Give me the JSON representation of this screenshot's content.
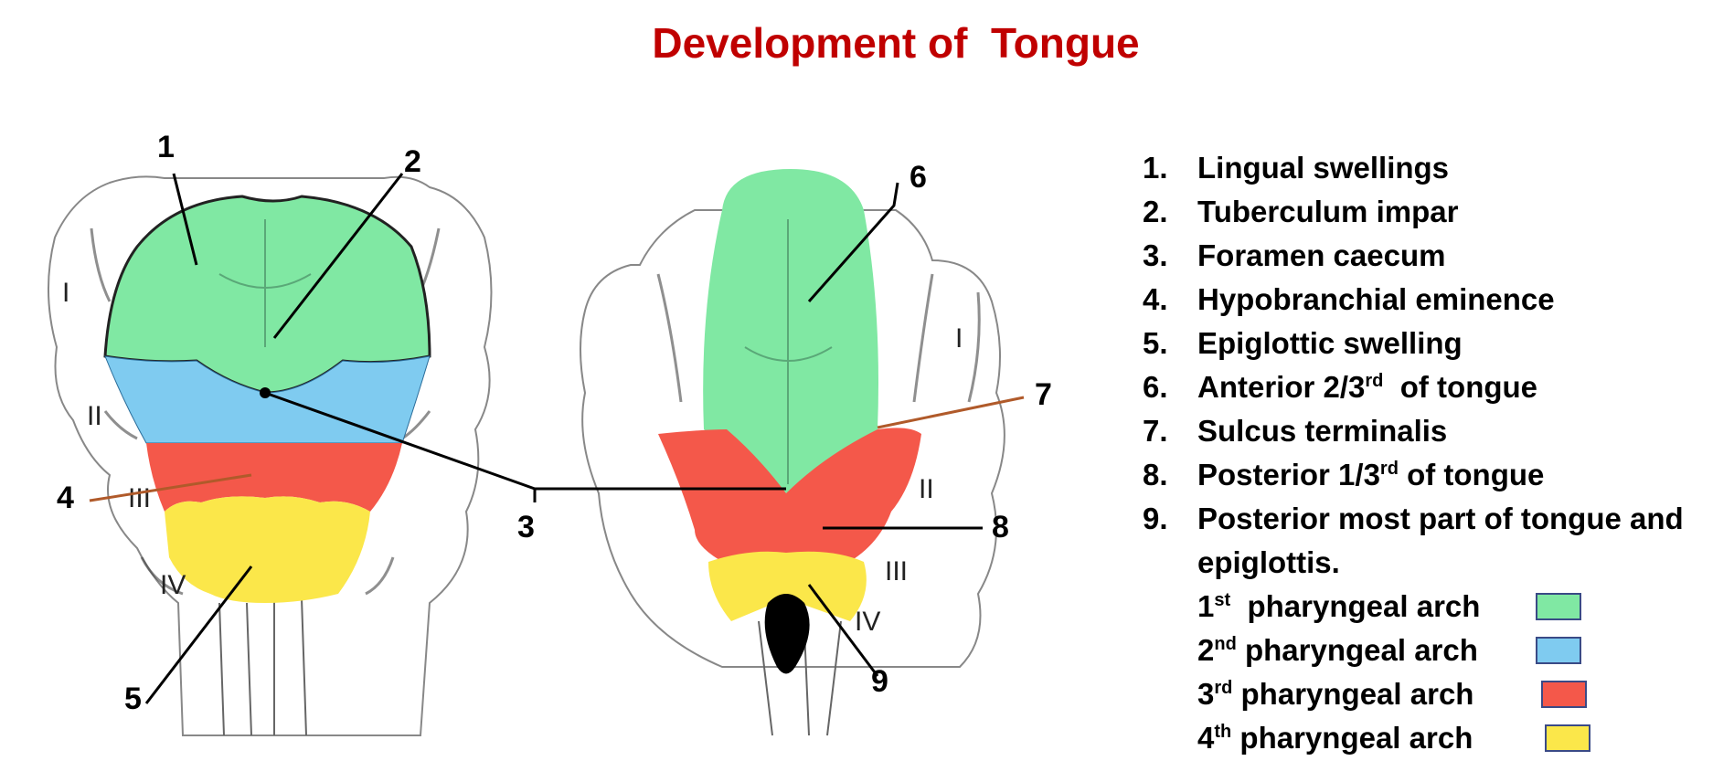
{
  "title": "Development of  Tongue",
  "callouts": [
    "1",
    "2",
    "3",
    "4",
    "5",
    "6",
    "7",
    "8",
    "9"
  ],
  "arch_labels_left": [
    "I",
    "II",
    "III",
    "IV"
  ],
  "arch_labels_right": [
    "I",
    "II",
    "III",
    "IV"
  ],
  "legend": {
    "items": [
      {
        "num": "1.",
        "text": "Lingual swellings"
      },
      {
        "num": "2.",
        "text": "Tuberculum impar"
      },
      {
        "num": "3.",
        "text": "Foramen caecum"
      },
      {
        "num": "4.",
        "text": "Hypobranchial eminence"
      },
      {
        "num": "5.",
        "text": "Epiglottic swelling"
      },
      {
        "num": "6.",
        "pre": "Anterior 2/3",
        "sup": "rd",
        "post": "  of tongue"
      },
      {
        "num": "7.",
        "text": "Sulcus terminalis"
      },
      {
        "num": "8.",
        "pre": "Posterior 1/3",
        "sup": "rd",
        "post": " of tongue"
      },
      {
        "num": "9.",
        "text": "Posterior most part of tongue and epiglottis."
      }
    ],
    "arches": [
      {
        "pre": "1",
        "sup": "st",
        "post": "  pharyngeal arch",
        "color": "#80e8a3"
      },
      {
        "pre": "2",
        "sup": "nd",
        "post": " pharyngeal arch",
        "color": "#7fcbf0"
      },
      {
        "pre": "3",
        "sup": "rd",
        "post": " pharyngeal arch",
        "color": "#f4584a"
      },
      {
        "pre": "4",
        "sup": "th",
        "post": " pharyngeal arch",
        "color": "#fbe74a"
      }
    ]
  },
  "colors": {
    "title": "#c00000",
    "arch1": "#80e8a3",
    "arch2": "#7fcbf0",
    "arch3": "#f4584a",
    "arch4": "#fbe74a",
    "sulcus_line": "#b05a2a"
  }
}
